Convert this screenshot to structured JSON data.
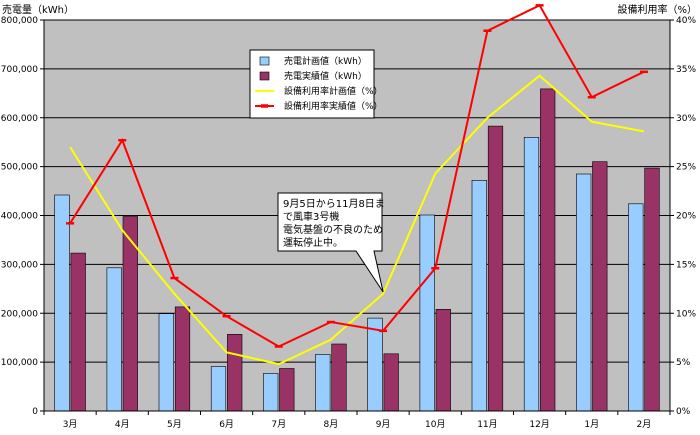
{
  "chart_data": {
    "type": "bar",
    "categories": [
      "3月",
      "4月",
      "5月",
      "6月",
      "7月",
      "8月",
      "9月",
      "10月",
      "11月",
      "12月",
      "1月",
      "2月"
    ],
    "y_left": {
      "label": "売電量（kWh）",
      "min": 0,
      "max": 800000,
      "step": 100000,
      "ticks": [
        "0",
        "100,000",
        "200,000",
        "300,000",
        "400,000",
        "500,000",
        "600,000",
        "700,000",
        "800,000"
      ]
    },
    "y_right": {
      "label": "設備利用率（%）",
      "min": 0,
      "max": 40,
      "step": 5,
      "ticks": [
        "0%",
        "5%",
        "10%",
        "15%",
        "20%",
        "25%",
        "30%",
        "35%",
        "40%"
      ]
    },
    "grid": true,
    "legend_position": "top-center",
    "series": [
      {
        "name": "売電計画値（kWh）",
        "kind": "bar",
        "axis": "left",
        "color": "#99CCFF",
        "values": [
          442000,
          293000,
          199000,
          91000,
          77000,
          116000,
          190000,
          401000,
          472000,
          560000,
          485000,
          424000
        ]
      },
      {
        "name": "売電実績値（kWh）",
        "kind": "bar",
        "axis": "left",
        "color": "#993366",
        "values": [
          323000,
          398000,
          213000,
          157000,
          87000,
          137000,
          117000,
          208000,
          583000,
          659000,
          510000,
          497000
        ]
      },
      {
        "name": "設備利用率計画値（%）",
        "kind": "line",
        "axis": "right",
        "color": "#FFFF00",
        "marker": "none",
        "values": [
          27.0,
          18.5,
          12.0,
          6.0,
          4.8,
          7.3,
          12.0,
          24.3,
          30.0,
          34.3,
          29.6,
          28.6
        ]
      },
      {
        "name": "設備利用率実績値（%）",
        "kind": "line",
        "axis": "right",
        "color": "#FF0000",
        "marker": "dash",
        "values": [
          19.2,
          27.7,
          13.6,
          9.7,
          6.6,
          9.1,
          8.2,
          14.6,
          38.9,
          41.5,
          32.1,
          34.7
        ]
      }
    ],
    "annotation": {
      "lines": [
        "9月5日から11月8日ま",
        "で風車3号機",
        "電気基盤の不良のため",
        "運転停止中。"
      ],
      "points_to_category": "9月"
    }
  },
  "colors": {
    "plot_background": "#C0C0C0",
    "gridline": "#000000",
    "page_background": "#FFFFFF"
  }
}
